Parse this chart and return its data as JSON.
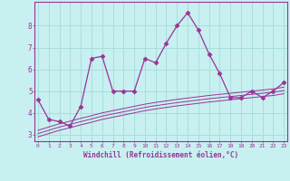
{
  "xlabel": "Windchill (Refroidissement éolien,°C)",
  "bg_color": "#c8f0f0",
  "line_color": "#993399",
  "grid_color": "#aadddd",
  "x_ticks": [
    0,
    1,
    2,
    3,
    4,
    5,
    6,
    7,
    8,
    9,
    10,
    11,
    12,
    13,
    14,
    15,
    16,
    17,
    18,
    19,
    20,
    21,
    22,
    23
  ],
  "y_ticks": [
    3,
    4,
    5,
    6,
    7,
    8
  ],
  "ylim": [
    2.7,
    9.1
  ],
  "xlim": [
    -0.3,
    23.3
  ],
  "main_line": [
    4.6,
    3.7,
    3.6,
    3.4,
    4.3,
    6.5,
    6.6,
    5.0,
    5.0,
    5.0,
    6.5,
    6.3,
    7.2,
    8.0,
    8.6,
    7.8,
    6.7,
    5.8,
    4.7,
    4.7,
    5.0,
    4.7,
    5.0,
    5.4
  ],
  "ref_lines": [
    [
      3.2,
      3.35,
      3.5,
      3.62,
      3.75,
      3.87,
      4.0,
      4.1,
      4.2,
      4.3,
      4.4,
      4.48,
      4.55,
      4.62,
      4.68,
      4.74,
      4.8,
      4.85,
      4.9,
      4.95,
      5.0,
      5.05,
      5.1,
      5.18
    ],
    [
      3.05,
      3.2,
      3.35,
      3.47,
      3.6,
      3.72,
      3.85,
      3.95,
      4.05,
      4.15,
      4.25,
      4.33,
      4.4,
      4.47,
      4.53,
      4.59,
      4.65,
      4.7,
      4.75,
      4.8,
      4.85,
      4.9,
      4.95,
      5.03
    ],
    [
      2.9,
      3.05,
      3.2,
      3.32,
      3.45,
      3.57,
      3.7,
      3.8,
      3.9,
      4.0,
      4.1,
      4.18,
      4.25,
      4.32,
      4.38,
      4.44,
      4.5,
      4.55,
      4.6,
      4.65,
      4.7,
      4.75,
      4.8,
      4.88
    ]
  ]
}
